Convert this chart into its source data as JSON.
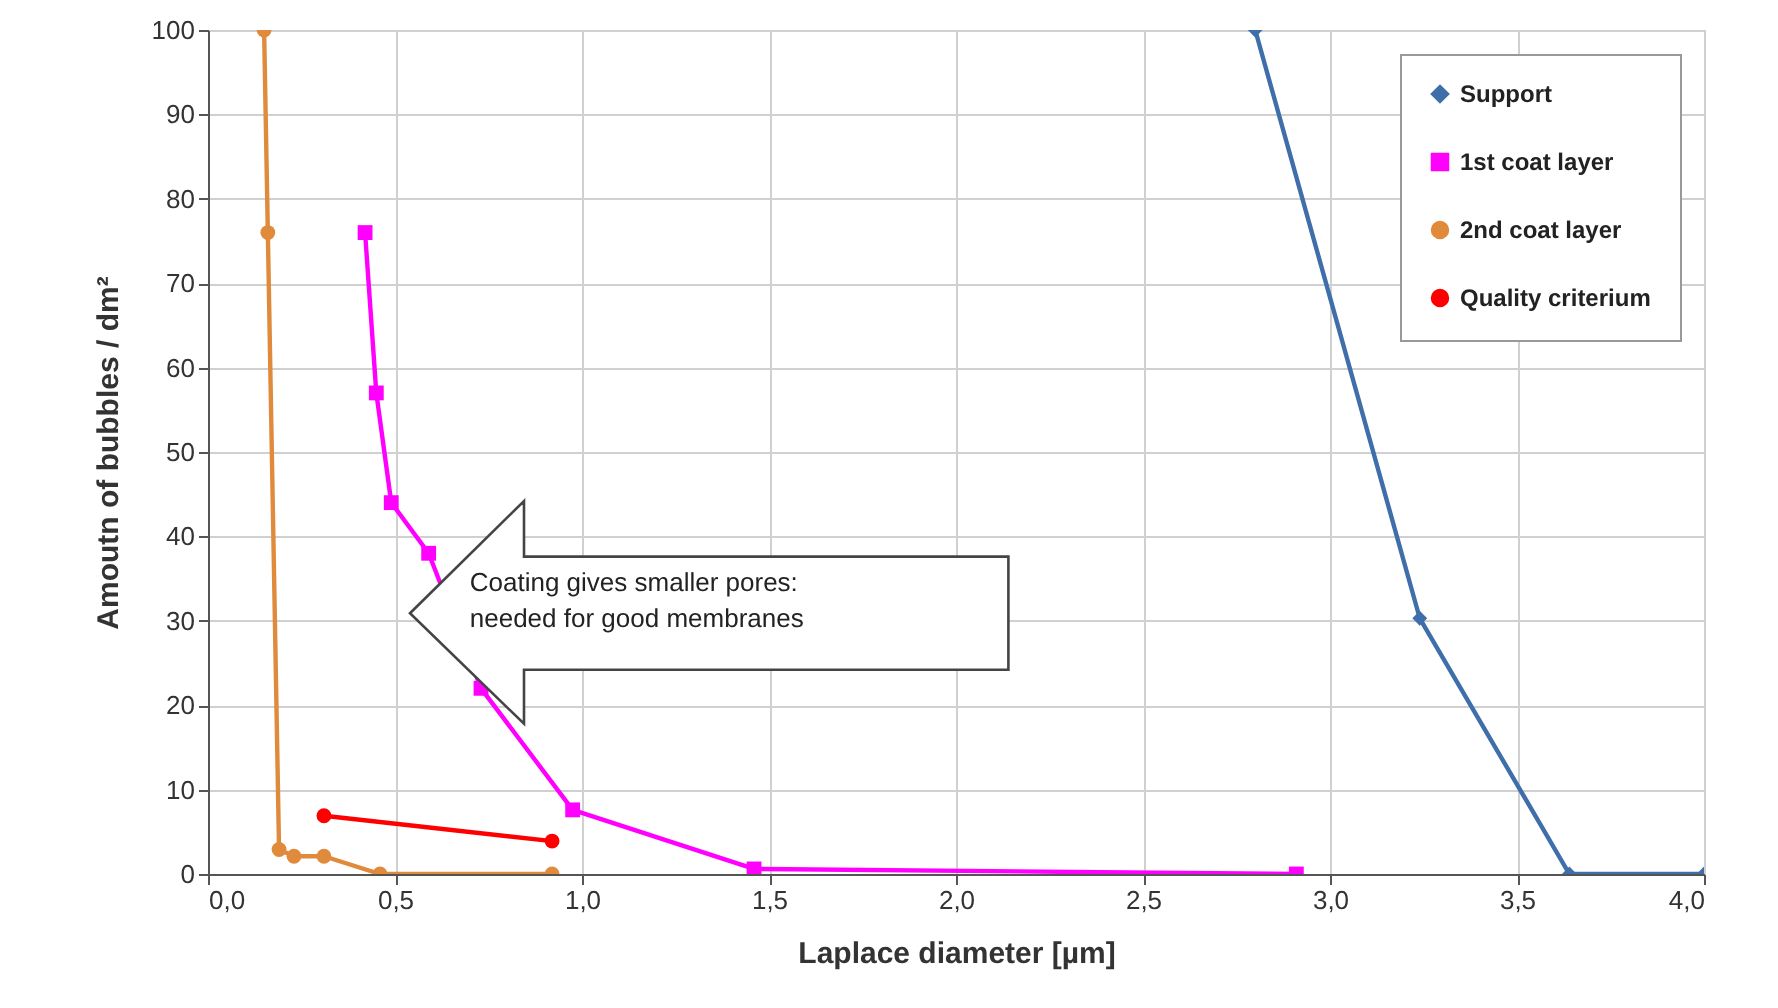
{
  "chart_data": {
    "type": "line",
    "xlabel": "Laplace diameter [µm]",
    "ylabel": "Amoutn of bubbles / dm²",
    "series": [
      {
        "name": "Support",
        "color": "#3f6faa",
        "marker": "diamond",
        "x": [
          2.8,
          3.24,
          3.64,
          4.0
        ],
        "values": [
          100,
          30.3,
          0,
          0
        ]
      },
      {
        "name": "1st coat layer",
        "color": "#ff00ff",
        "marker": "square",
        "x": [
          0.42,
          0.45,
          0.49,
          0.59,
          0.73,
          0.975,
          1.46,
          2.91
        ],
        "values": [
          76,
          57,
          44,
          38,
          22,
          7.6,
          0.6,
          0
        ]
      },
      {
        "name": "2nd coat layer",
        "color": "#e08a3c",
        "marker": "circle",
        "x": [
          0.15,
          0.16,
          0.19,
          0.23,
          0.31,
          0.46,
          0.92
        ],
        "values": [
          100,
          76,
          2.9,
          2.1,
          2.1,
          0,
          0
        ]
      },
      {
        "name": "Quality criterium",
        "color": "#ff0000",
        "marker": "circle",
        "x": [
          0.31,
          0.92
        ],
        "values": [
          6.9,
          3.9
        ]
      }
    ],
    "xlim": [
      0,
      4
    ],
    "xticks": [
      {
        "value": 0,
        "label": "0,0"
      },
      {
        "value": 0.5,
        "label": "0,5"
      },
      {
        "value": 1,
        "label": "1,0"
      },
      {
        "value": 1.5,
        "label": "1,5"
      },
      {
        "value": 2,
        "label": "2,0"
      },
      {
        "value": 2.5,
        "label": "2,5"
      },
      {
        "value": 3,
        "label": "3,0"
      },
      {
        "value": 3.5,
        "label": "3,5"
      },
      {
        "value": 4,
        "label": "4,0"
      }
    ],
    "ylim": [
      0,
      100
    ],
    "yticks": [
      0,
      10,
      20,
      30,
      40,
      50,
      60,
      70,
      80,
      90,
      100
    ],
    "grid": true,
    "legend": "top right",
    "line_style": "solid",
    "annotations": [
      "Coating gives smaller pores:\nneeded for good membranes"
    ]
  }
}
